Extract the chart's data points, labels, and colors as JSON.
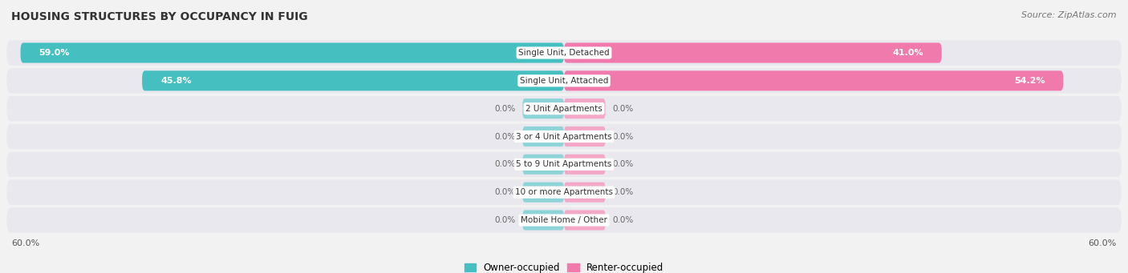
{
  "title": "HOUSING STRUCTURES BY OCCUPANCY IN FUIG",
  "source": "Source: ZipAtlas.com",
  "categories": [
    "Single Unit, Detached",
    "Single Unit, Attached",
    "2 Unit Apartments",
    "3 or 4 Unit Apartments",
    "5 to 9 Unit Apartments",
    "10 or more Apartments",
    "Mobile Home / Other"
  ],
  "owner_values": [
    59.0,
    45.8,
    0.0,
    0.0,
    0.0,
    0.0,
    0.0
  ],
  "renter_values": [
    41.0,
    54.2,
    0.0,
    0.0,
    0.0,
    0.0,
    0.0
  ],
  "owner_color": "#45bfc0",
  "renter_color": "#f07aab",
  "owner_color_zero": "#8dd4d8",
  "renter_color_zero": "#f4a8c8",
  "background_color": "#f2f2f2",
  "bar_row_color": "#e8e8ee",
  "title_fontsize": 10,
  "source_fontsize": 8,
  "axis_max": 60.0,
  "zero_stub": 4.5,
  "legend_owner": "Owner-occupied",
  "legend_renter": "Renter-occupied",
  "xaxis_label_left": "60.0%",
  "xaxis_label_right": "60.0%"
}
